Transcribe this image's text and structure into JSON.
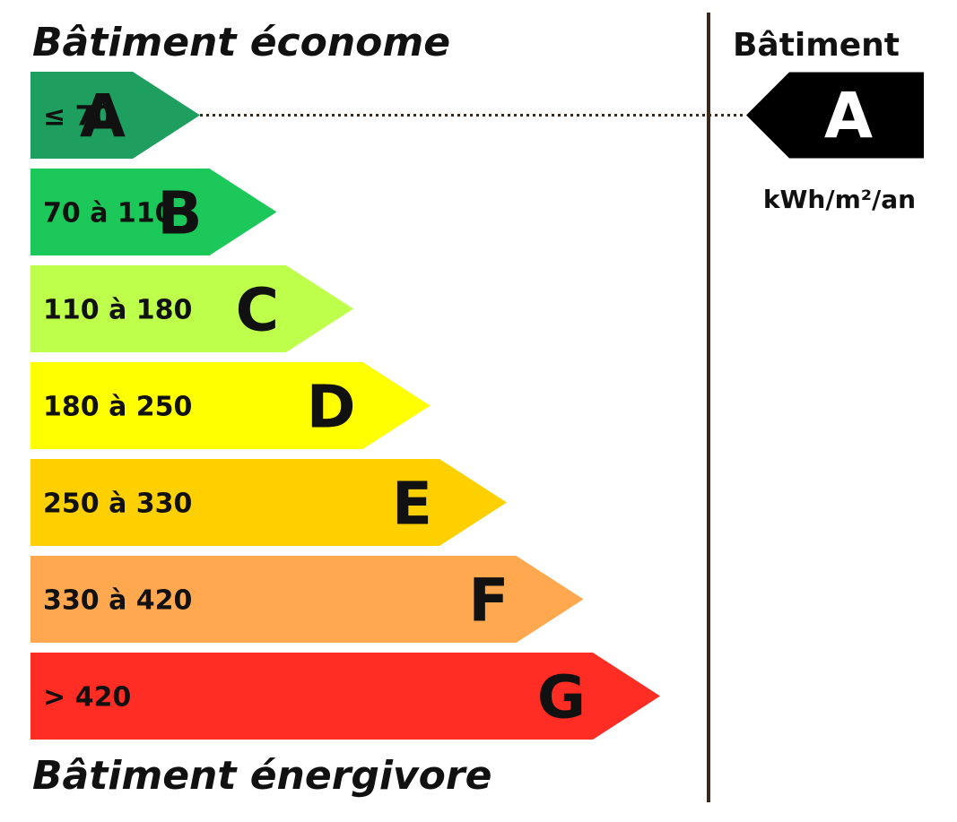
{
  "header": {
    "top_label": "Bâtiment économe",
    "bottom_label": "Bâtiment énergivore"
  },
  "side": {
    "title": "Bâtiment",
    "rating": "A",
    "unit": "kWh/m²/an",
    "marker_color": "#000000"
  },
  "classes": [
    {
      "letter": "A",
      "range": "≤ 70",
      "color": "#1E9E5F"
    },
    {
      "letter": "B",
      "range": "70 à 110",
      "color": "#1DC85A"
    },
    {
      "letter": "C",
      "range": "110 à 180",
      "color": "#BEFF4B"
    },
    {
      "letter": "D",
      "range": "180 à 250",
      "color": "#FFFF00"
    },
    {
      "letter": "E",
      "range": "250 à 330",
      "color": "#FFD000"
    },
    {
      "letter": "F",
      "range": "330 à 420",
      "color": "#FFA850"
    },
    {
      "letter": "G",
      "range": "> 420",
      "color": "#FF2D23"
    }
  ]
}
